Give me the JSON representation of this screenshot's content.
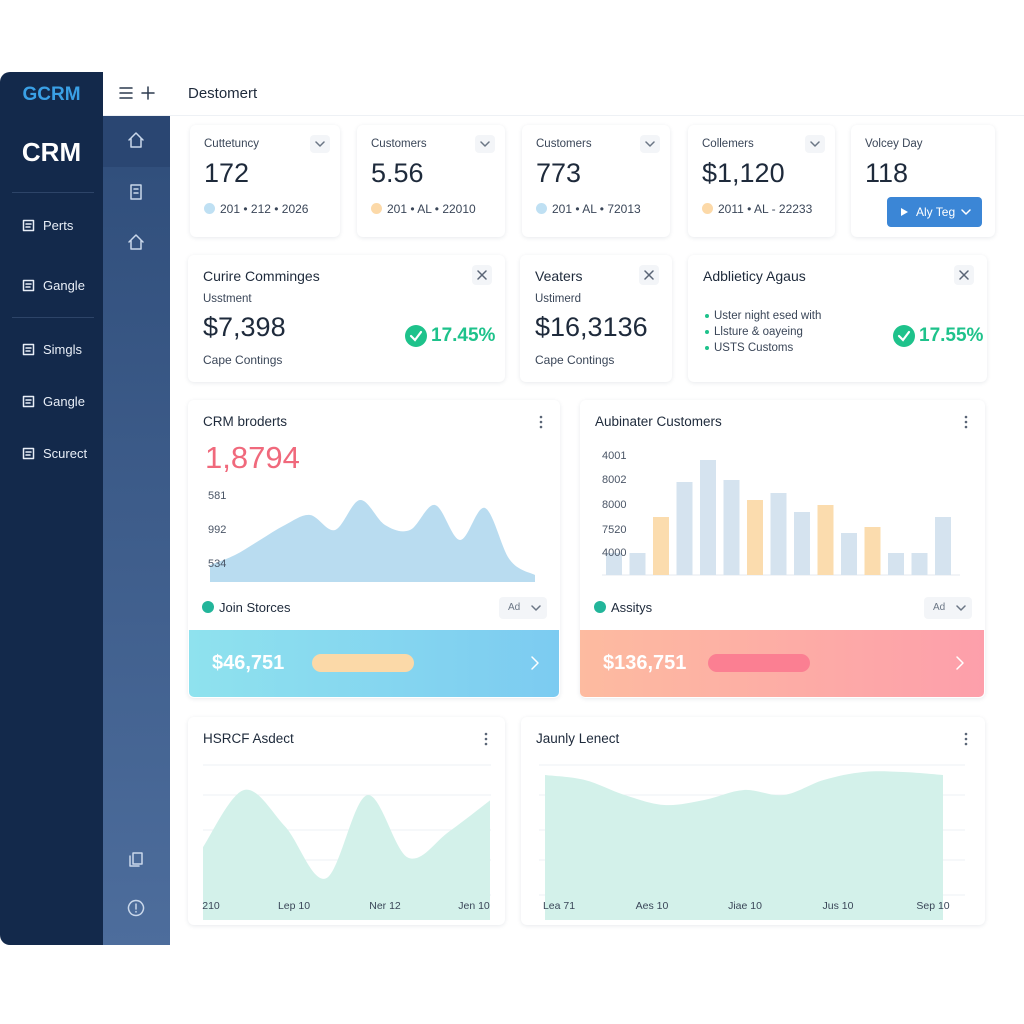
{
  "sidebar": {
    "logo": "GCRM",
    "brand": "CRM",
    "nav": [
      "Perts",
      "Gangle",
      "Simgls",
      "Gangle",
      "Scurect"
    ]
  },
  "header": {
    "title": "Destomert"
  },
  "stats": [
    {
      "label": "Cuttetuncy",
      "value": "172",
      "meta": "201 • 212 • 2026",
      "dot": "#bfe0f3"
    },
    {
      "label": "Customers",
      "value": "5.56",
      "meta": "201 • AL • 22010",
      "dot": "#fcd9a8"
    },
    {
      "label": "Customers",
      "value": "773",
      "meta": "201 • AL • 72013",
      "dot": "#bfe0f3"
    },
    {
      "label": "Collemers",
      "value": "$1,120",
      "meta": "2011 • AL - 22233",
      "dot": "#fcd9a8"
    },
    {
      "label": "Volcey Day",
      "value": "118",
      "button": "Aly Teg"
    }
  ],
  "summary": [
    {
      "title": "Curire Comminges",
      "subtitle": "Usstment",
      "value": "$7,398",
      "caption": "Cape Contings",
      "change": "17.45%"
    },
    {
      "title": "Veaters",
      "subtitle": "Ustimerd",
      "value": "$16,3136",
      "caption": "Cape Contings"
    },
    {
      "title": "Adblieticy Agaus",
      "bullets": [
        "Uster night esed with",
        "Llsture & oayeing",
        "USTS Customs"
      ],
      "change": "17.55%"
    }
  ],
  "charts": [
    {
      "type": "area",
      "title": "CRM broderts",
      "total": "1,8794",
      "color": "#b9dcf0",
      "ylabels": [
        "581",
        "992",
        "534"
      ],
      "values": [
        17,
        27,
        42,
        57,
        67,
        52,
        82,
        57,
        52,
        77,
        42,
        74,
        22,
        7
      ],
      "footer": {
        "label": "Join Storces",
        "select": "Ad",
        "amount": "$46,751"
      }
    },
    {
      "type": "bar",
      "title": "Aubinater Customers",
      "ylabels": [
        "4001",
        "8002",
        "8000",
        "7520",
        "4000"
      ],
      "values": [
        22,
        22,
        58,
        93,
        115,
        95,
        75,
        82,
        63,
        70,
        42,
        48,
        22,
        22,
        58
      ],
      "colors": [
        "#d5e3ef",
        "#d5e3ef",
        "#fbdcae",
        "#d5e3ef",
        "#d5e3ef",
        "#d5e3ef",
        "#fbdcae",
        "#d5e3ef",
        "#d5e3ef",
        "#fbdcae",
        "#d5e3ef",
        "#fbdcae",
        "#d5e3ef",
        "#d5e3ef",
        "#d5e3ef"
      ],
      "footer": {
        "label": "Assitys",
        "select": "Ad",
        "amount": "$136,751"
      }
    },
    {
      "type": "area",
      "title": "HSRCF Asdect",
      "color": "#d3f1ea",
      "xlabels": [
        "210",
        "Lep 10",
        "Ner 12",
        "Jen 10"
      ],
      "values": [
        70,
        125,
        90,
        40,
        120,
        60,
        85,
        115
      ]
    },
    {
      "type": "area",
      "title": "Jaunly Lenect",
      "color": "#d3f1ea",
      "xlabels": [
        "Lea 71",
        "Aes 10",
        "Jiae 10",
        "Jus 10",
        "Sep 10"
      ],
      "values": [
        145,
        140,
        125,
        115,
        120,
        130,
        125,
        140,
        148,
        148,
        145
      ]
    }
  ]
}
